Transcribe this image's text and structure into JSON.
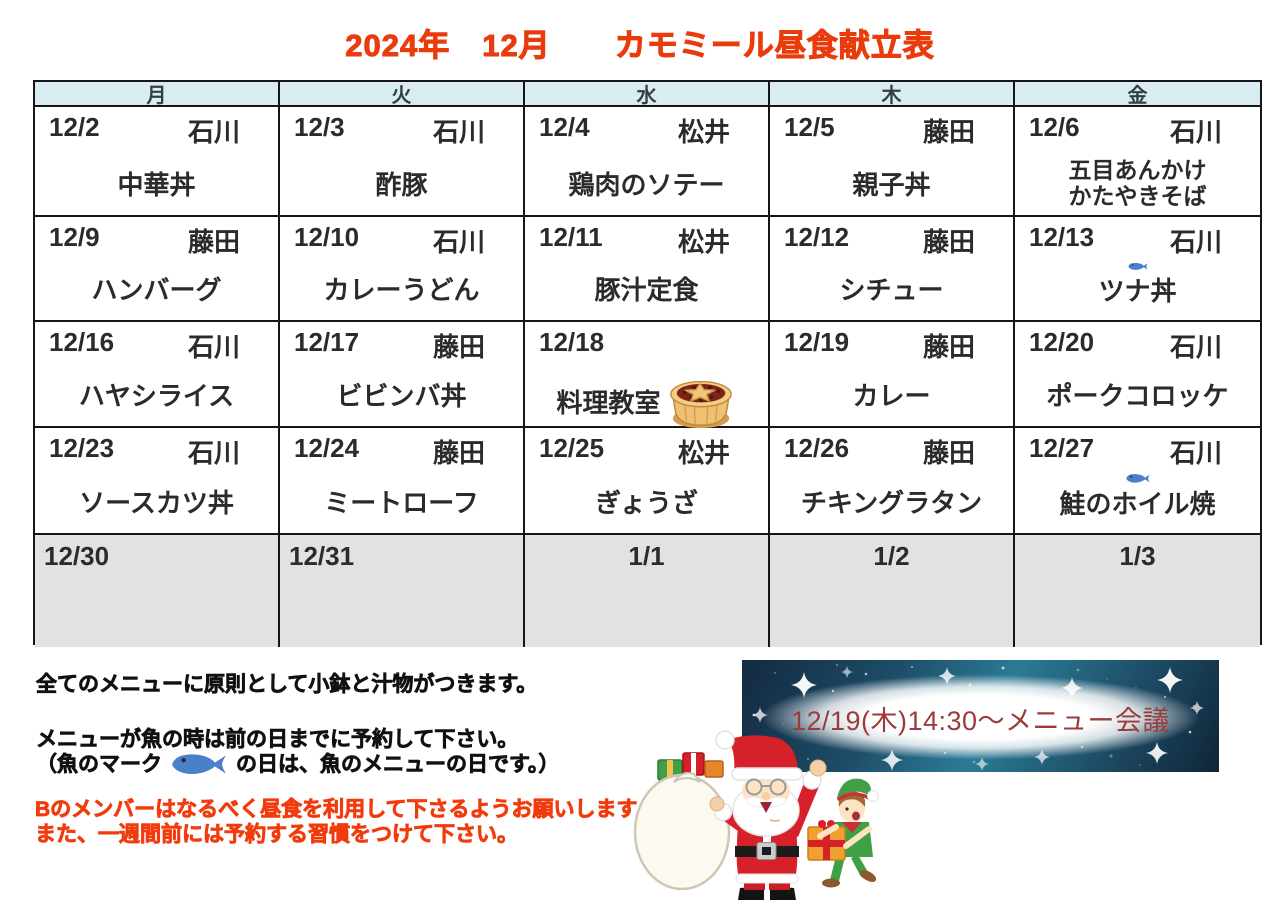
{
  "title": "2024年　12月　　カモミール昼食献立表",
  "calendar": {
    "day_headers": [
      "月",
      "火",
      "水",
      "木",
      "金"
    ],
    "weeks": [
      [
        {
          "date": "12/2",
          "staff": "石川",
          "menu": "中華丼"
        },
        {
          "date": "12/3",
          "staff": "石川",
          "menu": "酢豚"
        },
        {
          "date": "12/4",
          "staff": "松井",
          "menu": "鶏肉のソテー"
        },
        {
          "date": "12/5",
          "staff": "藤田",
          "menu": "親子丼"
        },
        {
          "date": "12/6",
          "staff": "石川",
          "menu": "五目あんかけ\nかたやきそば"
        }
      ],
      [
        {
          "date": "12/9",
          "staff": "藤田",
          "menu": "ハンバーグ"
        },
        {
          "date": "12/10",
          "staff": "石川",
          "menu": "カレーうどん"
        },
        {
          "date": "12/11",
          "staff": "松井",
          "menu": "豚汁定食"
        },
        {
          "date": "12/12",
          "staff": "藤田",
          "menu": "シチュー"
        },
        {
          "date": "12/13",
          "staff": "石川",
          "menu": "ツナ丼",
          "fish": true
        }
      ],
      [
        {
          "date": "12/16",
          "staff": "石川",
          "menu": "ハヤシライス"
        },
        {
          "date": "12/17",
          "staff": "藤田",
          "menu": "ビビンバ丼"
        },
        {
          "date": "12/18",
          "staff": "",
          "menu": "料理教室",
          "pie": true
        },
        {
          "date": "12/19",
          "staff": "藤田",
          "menu": "カレー"
        },
        {
          "date": "12/20",
          "staff": "石川",
          "menu": "ポークコロッケ"
        }
      ],
      [
        {
          "date": "12/23",
          "staff": "石川",
          "menu": "ソースカツ丼"
        },
        {
          "date": "12/24",
          "staff": "藤田",
          "menu": "ミートローフ"
        },
        {
          "date": "12/25",
          "staff": "松井",
          "menu": "ぎょうざ"
        },
        {
          "date": "12/26",
          "staff": "藤田",
          "menu": "チキングラタン"
        },
        {
          "date": "12/27",
          "staff": "石川",
          "menu": "鮭のホイル焼",
          "fish": true
        }
      ],
      [
        {
          "date": "12/30",
          "holiday": true,
          "align": "left"
        },
        {
          "date": "12/31",
          "holiday": true,
          "align": "left"
        },
        {
          "date": "1/1",
          "holiday": true,
          "align": "center"
        },
        {
          "date": "1/2",
          "holiday": true,
          "align": "center"
        },
        {
          "date": "1/3",
          "holiday": true,
          "align": "center"
        }
      ]
    ]
  },
  "notes": {
    "line1": "全てのメニューに原則として小鉢と汁物がつきます。",
    "line2": "メニューが魚の時は前の日までに予約して下さい。",
    "line3_before_fish": "（魚のマーク",
    "line3_after_fish": "の日は、魚のメニューの日です。）",
    "warning1": "Bのメンバーはなるべく昼食を利用して下さるようお願いします",
    "warning2": "また、一週間前には予約する習慣をつけて下さい。"
  },
  "banner": {
    "text": "12/19(木)14:30～メニュー会議"
  },
  "icons": {
    "fish": "fish-icon",
    "pie": "mince-pie-image",
    "illustration": "santa-and-elf-illustration"
  },
  "colors": {
    "title": "#ea3b0c",
    "warning": "#f23b0c",
    "header_bg": "#d9ecf2",
    "holiday_bg": "#e2e2e2",
    "fish": "#4a80c8",
    "banner_text": "#9c3b3b"
  }
}
